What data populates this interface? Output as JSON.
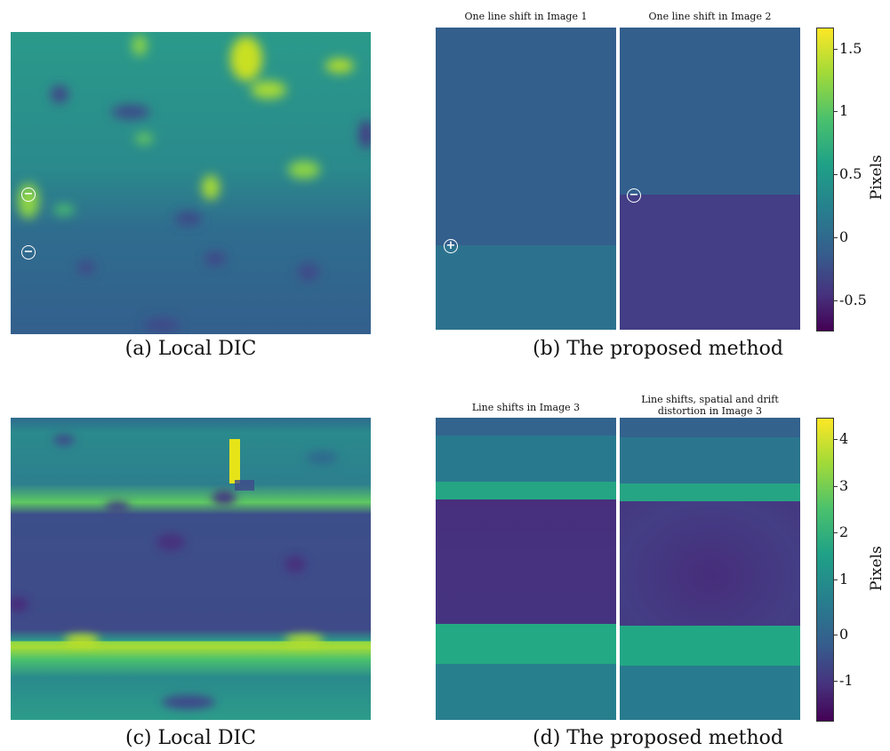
{
  "figure": {
    "top": {
      "caption_a": "(a) Local DIC",
      "caption_b": "(b) The proposed method",
      "subtitle_left": "One line shift in Image 1",
      "subtitle_right": "One line shift in Image 2",
      "markers_a": [
        "−",
        "−"
      ],
      "marker_b_left": "+",
      "marker_b_right": "−",
      "colorbar": {
        "label": "Pixels",
        "ticks": [
          "1.5",
          "1",
          "0.5",
          "0",
          "-0.5"
        ],
        "range": [
          -0.75,
          1.65
        ],
        "colormap": "viridis"
      }
    },
    "bottom": {
      "caption_c": "(c) Local DIC",
      "caption_d": "(d) The proposed method",
      "subtitle_left": "Line shifts in Image 3",
      "subtitle_right_line1": "Line shifts, spatial and drift",
      "subtitle_right_line2": "distortion in Image 3",
      "colorbar": {
        "label": "Pixels",
        "ticks": [
          "4",
          "3",
          "2",
          "1",
          "0",
          "-1"
        ],
        "range": [
          -1.9,
          4.6
        ],
        "colormap": "viridis"
      }
    }
  }
}
